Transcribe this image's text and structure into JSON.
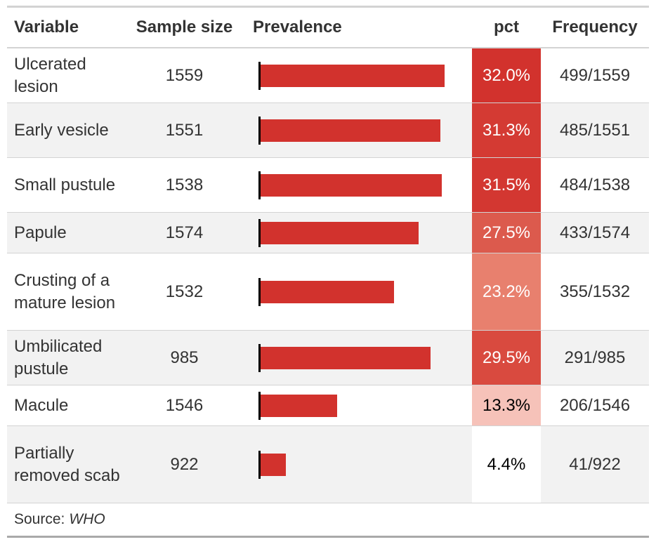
{
  "columns": {
    "variable": "Variable",
    "sample_size": "Sample size",
    "prevalence": "Prevalence",
    "pct": "pct",
    "frequency": "Frequency"
  },
  "rows": [
    {
      "variable": "Ulcerated lesion",
      "sample_size": "1559",
      "prevalence": 0.32,
      "pct": "32.0%",
      "frequency": "499/1559",
      "pct_bg": "#d2322d",
      "pct_color": "#ffffff"
    },
    {
      "variable": "Early vesicle",
      "sample_size": "1551",
      "prevalence": 0.313,
      "pct": "31.3%",
      "frequency": "485/1551",
      "pct_bg": "#d43a33",
      "pct_color": "#ffffff"
    },
    {
      "variable": "Small pustule",
      "sample_size": "1538",
      "prevalence": 0.315,
      "pct": "31.5%",
      "frequency": "484/1538",
      "pct_bg": "#d33731",
      "pct_color": "#ffffff"
    },
    {
      "variable": "Papule",
      "sample_size": "1574",
      "prevalence": 0.275,
      "pct": "27.5%",
      "frequency": "433/1574",
      "pct_bg": "#dc5a4d",
      "pct_color": "#ffffff"
    },
    {
      "variable": "Crusting of a mature lesion",
      "sample_size": "1532",
      "prevalence": 0.232,
      "pct": "23.2%",
      "frequency": "355/1532",
      "pct_bg": "#e8806e",
      "pct_color": "#ffffff"
    },
    {
      "variable": "Umbilicated pustule",
      "sample_size": "985",
      "prevalence": 0.295,
      "pct": "29.5%",
      "frequency": "291/985",
      "pct_bg": "#d94a3f",
      "pct_color": "#ffffff"
    },
    {
      "variable": "Macule",
      "sample_size": "1546",
      "prevalence": 0.133,
      "pct": "13.3%",
      "frequency": "206/1546",
      "pct_bg": "#f6c2b9",
      "pct_color": "#000000"
    },
    {
      "variable": "Partially removed scab",
      "sample_size": "922",
      "prevalence": 0.044,
      "pct": "4.4%",
      "frequency": "41/922",
      "pct_bg": "#ffffff",
      "pct_color": "#000000"
    }
  ],
  "source": {
    "label": "Source:",
    "value": "WHO"
  },
  "chart_data": {
    "type": "table",
    "bar_color": "#d2322d",
    "categories": [
      "Ulcerated lesion",
      "Early vesicle",
      "Small pustule",
      "Papule",
      "Crusting of a mature lesion",
      "Umbilicated pustule",
      "Macule",
      "Partially removed scab"
    ],
    "series": [
      {
        "name": "Sample size",
        "values": [
          1559,
          1551,
          1538,
          1574,
          1532,
          985,
          1546,
          922
        ]
      },
      {
        "name": "pct",
        "values": [
          32.0,
          31.3,
          31.5,
          27.5,
          23.2,
          29.5,
          13.3,
          4.4
        ]
      }
    ]
  }
}
